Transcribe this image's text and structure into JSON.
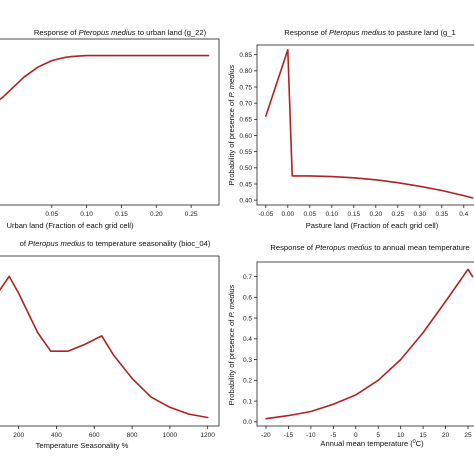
{
  "chart_data": [
    {
      "type": "line",
      "title": "Response of Pteropus medius to urban land (g_22)",
      "title_parts": [
        "Response of ",
        "Pteropus medius",
        " to urban land (g_22)"
      ],
      "xlabel": "Urban land (Fraction of each grid cell)",
      "ylabel": "",
      "xlim": [
        -0.03,
        0.29
      ],
      "ylim": [
        0.0,
        1.0
      ],
      "xticks": [
        0.05,
        0.1,
        0.15,
        0.2,
        0.25
      ],
      "xtick_labels": [
        "0.05",
        "0.10",
        "0.15",
        "0.20",
        "0.25"
      ],
      "yticks": [],
      "ytick_labels": [],
      "series": [
        {
          "x": [
            -0.03,
            -0.02,
            -0.01,
            0.0,
            0.01,
            0.02,
            0.03,
            0.04,
            0.05,
            0.06,
            0.07,
            0.08,
            0.1,
            0.12,
            0.15,
            0.2,
            0.25,
            0.275
          ],
          "y": [
            0.62,
            0.65,
            0.69,
            0.73,
            0.77,
            0.8,
            0.83,
            0.85,
            0.87,
            0.88,
            0.89,
            0.895,
            0.9,
            0.9,
            0.9,
            0.9,
            0.9,
            0.9
          ]
        }
      ]
    },
    {
      "type": "line",
      "title": "Response of Pteropus medius to pasture land (g_1",
      "title_parts": [
        "Response of ",
        "Pteropus medius",
        " to pasture land (g_1"
      ],
      "xlabel": "Pasture land (Fraction of each grid cell)",
      "ylabel": "Probability of presence of P. medius",
      "ylabel_parts": [
        "Probability of presence of ",
        "P. medius"
      ],
      "xlim": [
        -0.07,
        0.43
      ],
      "ylim": [
        0.385,
        0.88
      ],
      "xticks": [
        -0.05,
        0.0,
        0.05,
        0.1,
        0.15,
        0.2,
        0.25,
        0.3,
        0.35,
        0.4
      ],
      "xtick_labels": [
        "-0.05",
        "0.00",
        "0.05",
        "0.10",
        "0.15",
        "0.20",
        "0.25",
        "0.30",
        "0.35",
        "0.4"
      ],
      "yticks": [
        0.4,
        0.45,
        0.5,
        0.55,
        0.6,
        0.65,
        0.7,
        0.75,
        0.8,
        0.85
      ],
      "ytick_labels": [
        "0.40",
        "0.45",
        "0.50",
        "0.55",
        "0.60",
        "0.65",
        "0.70",
        "0.75",
        "0.80",
        "0.85"
      ],
      "series": [
        {
          "x": [
            -0.05,
            0.0,
            0.01,
            0.05,
            0.1,
            0.15,
            0.2,
            0.25,
            0.3,
            0.35,
            0.4,
            0.42
          ],
          "y": [
            0.66,
            0.865,
            0.475,
            0.475,
            0.473,
            0.469,
            0.463,
            0.454,
            0.443,
            0.43,
            0.414,
            0.407
          ]
        }
      ]
    },
    {
      "type": "line",
      "title": "of Pteropus medius to temperature seasonality (bioc_04)",
      "title_parts": [
        "of ",
        "Pteropus medius",
        " to temperature seasonality (bioc_04)"
      ],
      "xlabel": "Temperature Seasonality %",
      "ylabel": "",
      "xlim": [
        80,
        1260
      ],
      "ylim": [
        0.0,
        1.0
      ],
      "xticks": [
        200,
        400,
        600,
        800,
        1000,
        1200
      ],
      "xtick_labels": [
        "200",
        "400",
        "600",
        "800",
        "1000",
        "1200"
      ],
      "yticks": [],
      "ytick_labels": [],
      "series": [
        {
          "x": [
            100,
            150,
            200,
            300,
            370,
            460,
            550,
            640,
            700,
            800,
            900,
            1000,
            1100,
            1200
          ],
          "y": [
            0.8,
            0.88,
            0.78,
            0.55,
            0.44,
            0.44,
            0.48,
            0.53,
            0.42,
            0.28,
            0.17,
            0.11,
            0.07,
            0.05
          ]
        }
      ]
    },
    {
      "type": "line",
      "title": "Response of Pteropus medius to annual mean temperature",
      "title_parts": [
        "Response of ",
        "Pteropus medius",
        " to annual mean temperature"
      ],
      "xlabel": "Annual mean temperature (°C)",
      "xlabel_parts": [
        "Annual mean temperature (",
        "0",
        "C)"
      ],
      "ylabel": "Probability of presence of P. medius",
      "ylabel_parts": [
        "Probability of presence of ",
        "P. medius"
      ],
      "xlim": [
        -22,
        27
      ],
      "ylim": [
        -0.02,
        0.77
      ],
      "xticks": [
        -20,
        -15,
        -10,
        -5,
        0,
        5,
        10,
        15,
        20,
        25
      ],
      "xtick_labels": [
        "-20",
        "-15",
        "-10",
        "-5",
        "0",
        "5",
        "10",
        "15",
        "20",
        "25"
      ],
      "yticks": [
        0.0,
        0.1,
        0.2,
        0.3,
        0.4,
        0.5,
        0.6,
        0.7
      ],
      "ytick_labels": [
        "0.0",
        "0.1",
        "0.2",
        "0.3",
        "0.4",
        "0.5",
        "0.6",
        "0.7"
      ],
      "series": [
        {
          "x": [
            -20,
            -15,
            -10,
            -5,
            0,
            5,
            10,
            15,
            20,
            25,
            26
          ],
          "y": [
            0.015,
            0.03,
            0.05,
            0.085,
            0.13,
            0.2,
            0.3,
            0.43,
            0.58,
            0.735,
            0.7
          ]
        }
      ]
    }
  ]
}
